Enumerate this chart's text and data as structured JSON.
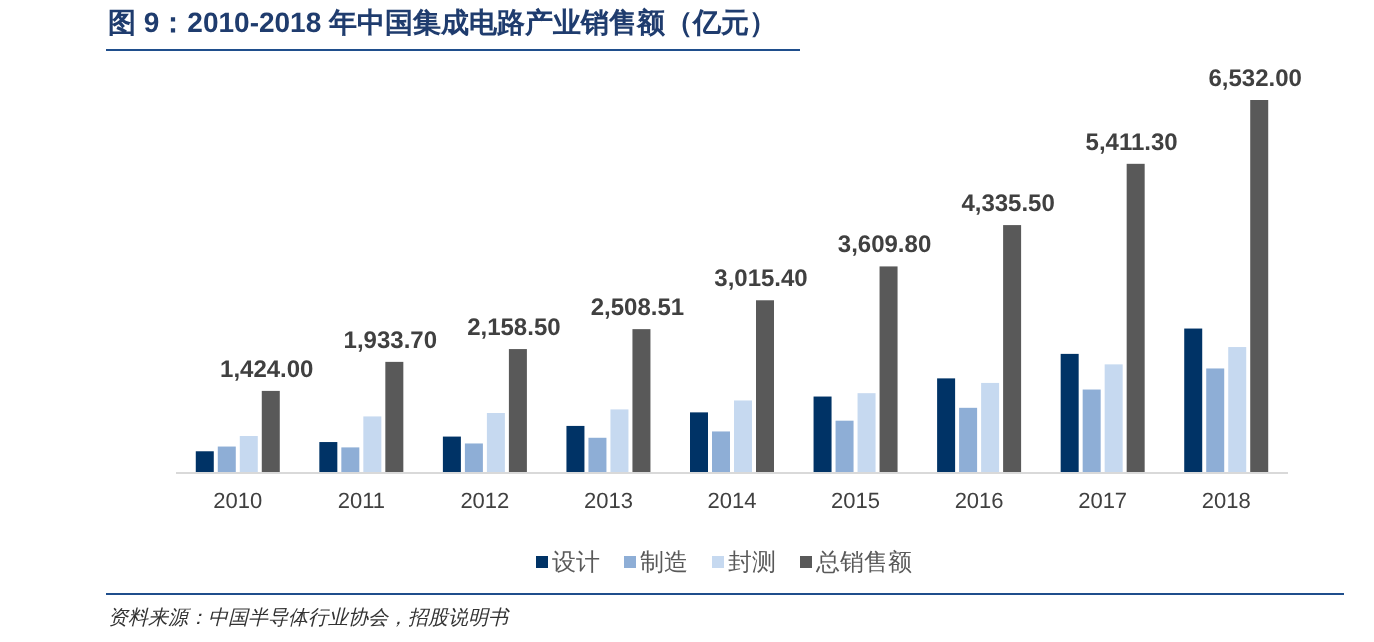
{
  "chart_data": {
    "type": "bar",
    "title": "图 9：2010-2018 年中国集成电路产业销售额（亿元）",
    "categories": [
      "2010",
      "2011",
      "2012",
      "2013",
      "2014",
      "2015",
      "2016",
      "2017",
      "2018"
    ],
    "series": [
      {
        "name": "设计",
        "color": "#003366",
        "values": [
          364,
          526,
          622,
          809,
          1047,
          1325,
          1644,
          2074,
          2519
        ]
      },
      {
        "name": "制造",
        "color": "#8eaed6",
        "values": [
          447,
          432,
          501,
          601,
          712,
          901,
          1127,
          1448,
          1818
        ]
      },
      {
        "name": "封测",
        "color": "#c6d9f0",
        "values": [
          632,
          976,
          1036,
          1099,
          1256,
          1384,
          1564,
          1890,
          2194
        ]
      },
      {
        "name": "总销售额",
        "color": "#595959",
        "values": [
          1424.0,
          1933.7,
          2158.5,
          2508.51,
          3015.4,
          3609.8,
          4335.5,
          5411.3,
          6532.0
        ],
        "value_labels": [
          "1,424.00",
          "1,933.70",
          "2,158.50",
          "2,508.51",
          "3,015.40",
          "3,609.80",
          "4,335.50",
          "5,411.30",
          "6,532.00"
        ]
      }
    ],
    "legend": "bottom",
    "annotations": [
      "资料来源：中国半导体行业协会，招股说明书"
    ]
  }
}
